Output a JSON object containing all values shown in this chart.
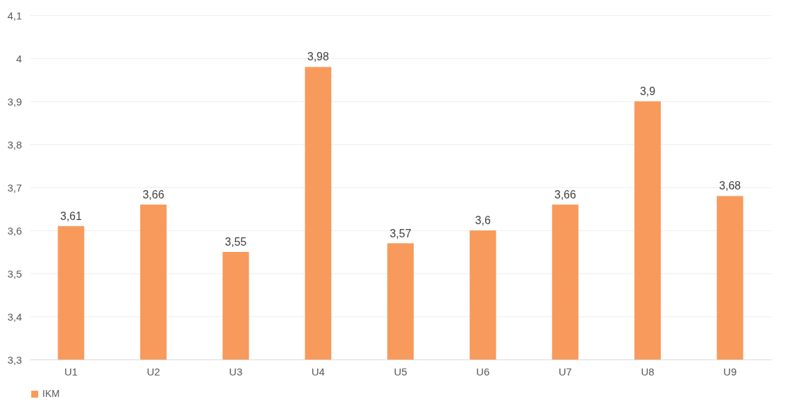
{
  "chart_data": {
    "type": "bar",
    "categories": [
      "U1",
      "U2",
      "U3",
      "U4",
      "U5",
      "U6",
      "U7",
      "U8",
      "U9"
    ],
    "series": [
      {
        "name": "IKM",
        "color": "#f79a5c",
        "values": [
          3.61,
          3.66,
          3.55,
          3.98,
          3.57,
          3.6,
          3.66,
          3.9,
          3.68
        ]
      }
    ],
    "value_labels": [
      "3,61",
      "3,66",
      "3,55",
      "3,98",
      "3,57",
      "3,6",
      "3,66",
      "3,9",
      "3,68"
    ],
    "ylim": [
      3.3,
      4.1
    ],
    "yticks": [
      {
        "value": 3.3,
        "label": "3,3"
      },
      {
        "value": 3.4,
        "label": "3,4"
      },
      {
        "value": 3.5,
        "label": "3,5"
      },
      {
        "value": 3.6,
        "label": "3,6"
      },
      {
        "value": 3.7,
        "label": "3,7"
      },
      {
        "value": 3.8,
        "label": "3,8"
      },
      {
        "value": 3.9,
        "label": "3,9"
      },
      {
        "value": 4,
        "label": "4"
      },
      {
        "value": 4.1,
        "label": "4,1"
      }
    ],
    "grid": "y",
    "legend": "bottom"
  }
}
